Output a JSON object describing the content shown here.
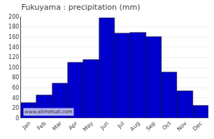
{
  "chart_data": {
    "type": "bar",
    "title": "Fukuyama : precipitation (mm)",
    "categories": [
      "Jan",
      "Feb",
      "Mar",
      "Apr",
      "May",
      "Jun",
      "Jul",
      "Aug",
      "Sep",
      "Oct",
      "Nov",
      "Dec"
    ],
    "values": [
      30,
      45,
      68,
      110,
      115,
      197,
      167,
      168,
      160,
      90,
      53,
      25
    ],
    "color": "#0000cc",
    "ylim": [
      0,
      200
    ],
    "yticks": [
      0,
      20,
      40,
      60,
      80,
      100,
      120,
      140,
      160,
      180,
      200
    ],
    "grid": true,
    "annotations": [
      "www.allmetsat.com"
    ]
  }
}
